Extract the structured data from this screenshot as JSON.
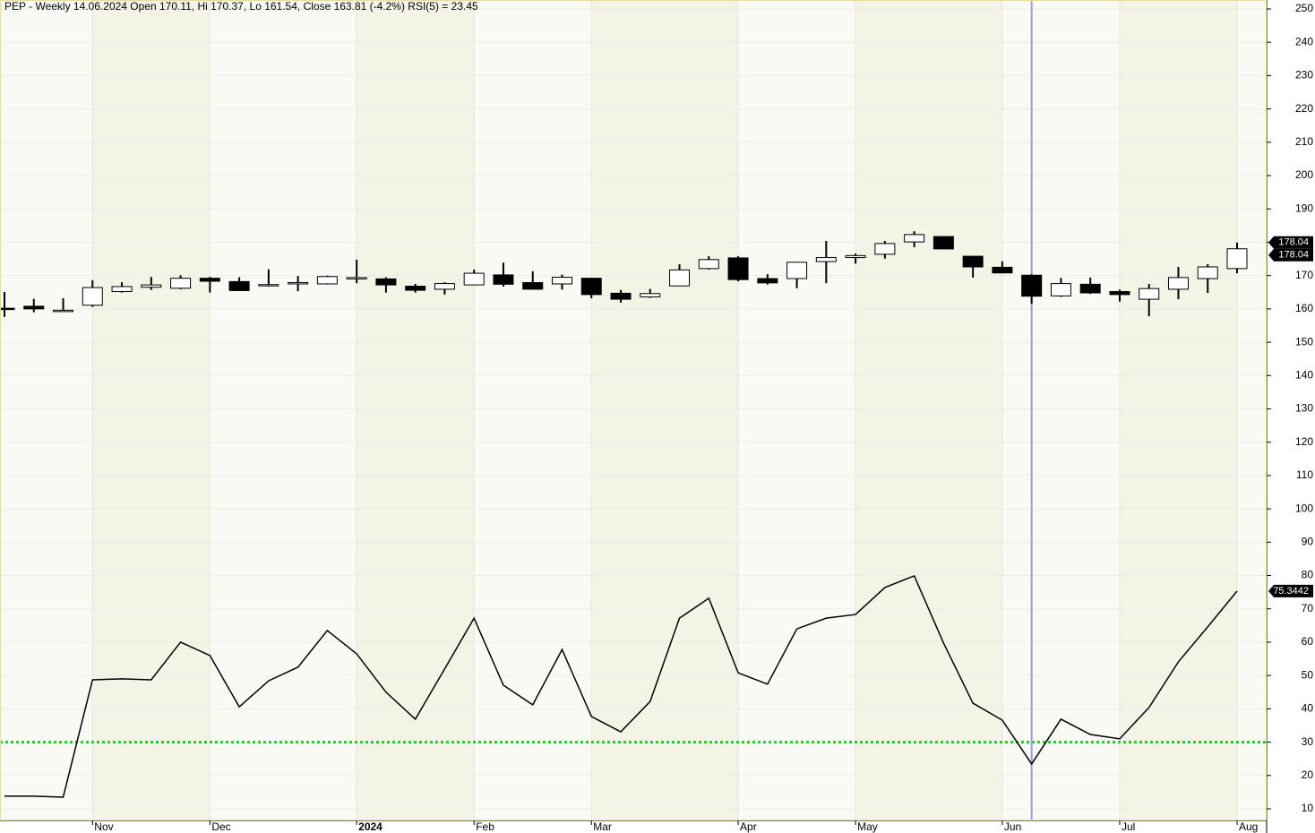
{
  "chart_data": {
    "type": "candlestick",
    "title": "PEP - Weekly 14.06.2024 Open 170.11, Hi 170.37, Lo 161.54, Close 163.81 (-4.2%) RSI(5) = 23.45",
    "categories": [
      null,
      null,
      null,
      "Nov",
      null,
      null,
      null,
      "Dec",
      null,
      null,
      null,
      null,
      "2024",
      null,
      null,
      null,
      "Feb",
      null,
      null,
      null,
      "Mar",
      null,
      null,
      null,
      null,
      "Apr",
      null,
      null,
      null,
      "May",
      null,
      null,
      null,
      null,
      "Jun",
      null,
      null,
      null,
      "Jul",
      null,
      null,
      null,
      "Aug"
    ],
    "candles": {
      "open": [
        160.2,
        160.8,
        159.5,
        161.1,
        165.2,
        166.5,
        166.2,
        169.2,
        168.2,
        167.2,
        167.7,
        167.5,
        169.0,
        169.0,
        166.8,
        165.9,
        167.2,
        170.2,
        167.9,
        167.5,
        169.2,
        164.7,
        163.6,
        166.9,
        172.1,
        175.3,
        169.1,
        169.1,
        174.2,
        175.4,
        176.4,
        180.1,
        181.7,
        175.8,
        172.5,
        170.11,
        163.9,
        167.4,
        165.2,
        162.9,
        165.9,
        169.1,
        172.1
      ],
      "high": [
        165.1,
        163.0,
        163.2,
        168.6,
        168.0,
        169.6,
        170.1,
        169.6,
        169.5,
        171.9,
        169.9,
        170.0,
        174.8,
        169.5,
        167.5,
        168.0,
        171.8,
        173.9,
        171.3,
        170.3,
        169.3,
        165.7,
        166.0,
        173.4,
        175.8,
        175.8,
        170.4,
        174.0,
        180.4,
        176.6,
        180.4,
        183.3,
        181.8,
        175.9,
        174.3,
        170.37,
        169.3,
        169.4,
        165.8,
        167.5,
        172.6,
        173.4,
        179.9
      ],
      "low": [
        157.6,
        159.0,
        159.2,
        160.6,
        164.9,
        165.7,
        165.9,
        164.9,
        165.4,
        166.7,
        165.3,
        167.3,
        167.7,
        164.9,
        164.9,
        164.3,
        167.2,
        166.7,
        165.8,
        165.8,
        163.2,
        161.9,
        163.3,
        166.9,
        171.8,
        168.3,
        167.3,
        166.2,
        167.7,
        173.6,
        175.1,
        178.5,
        177.9,
        169.4,
        170.7,
        161.54,
        163.6,
        164.5,
        162.2,
        157.8,
        162.9,
        164.8,
        170.7
      ],
      "close": [
        159.8,
        160.0,
        159.6,
        166.4,
        166.7,
        167.2,
        169.2,
        168.3,
        165.5,
        167.3,
        167.9,
        169.7,
        169.4,
        167.2,
        165.6,
        167.6,
        170.7,
        167.4,
        165.9,
        169.5,
        164.3,
        162.9,
        164.6,
        171.7,
        174.8,
        168.8,
        167.8,
        174.0,
        175.4,
        176.0,
        179.6,
        182.3,
        178.0,
        172.6,
        170.8,
        163.81,
        167.6,
        164.8,
        164.3,
        166.1,
        169.4,
        172.6,
        178.04
      ]
    },
    "rsi": {
      "values": [
        13.8,
        13.8,
        13.5,
        48.7,
        49.0,
        48.7,
        60.0,
        56.0,
        40.6,
        48.4,
        52.5,
        63.5,
        56.5,
        45.0,
        36.9,
        52.0,
        67.2,
        47.1,
        41.2,
        57.8,
        37.7,
        33.1,
        42.2,
        67.2,
        73.2,
        50.8,
        47.4,
        64.0,
        67.2,
        68.3,
        76.4,
        79.9,
        59.7,
        41.7,
        36.6,
        23.45,
        36.9,
        32.3,
        31.0,
        40.4,
        54.1,
        64.6,
        75.3442
      ],
      "color": "#000000"
    },
    "rsi_threshold": 30,
    "threshold_color": "#22cc22",
    "price_markers": [
      178.04,
      178.04
    ],
    "rsi_marker": 75.3442,
    "cursor_index": 35,
    "cursor_color": "#9999ee",
    "ylim": [
      10,
      250
    ],
    "yticks": [
      10,
      20,
      30,
      40,
      50,
      60,
      70,
      80,
      90,
      100,
      110,
      120,
      130,
      140,
      150,
      160,
      170,
      180,
      190,
      200,
      210,
      220,
      230,
      240,
      250
    ],
    "grid": true
  }
}
